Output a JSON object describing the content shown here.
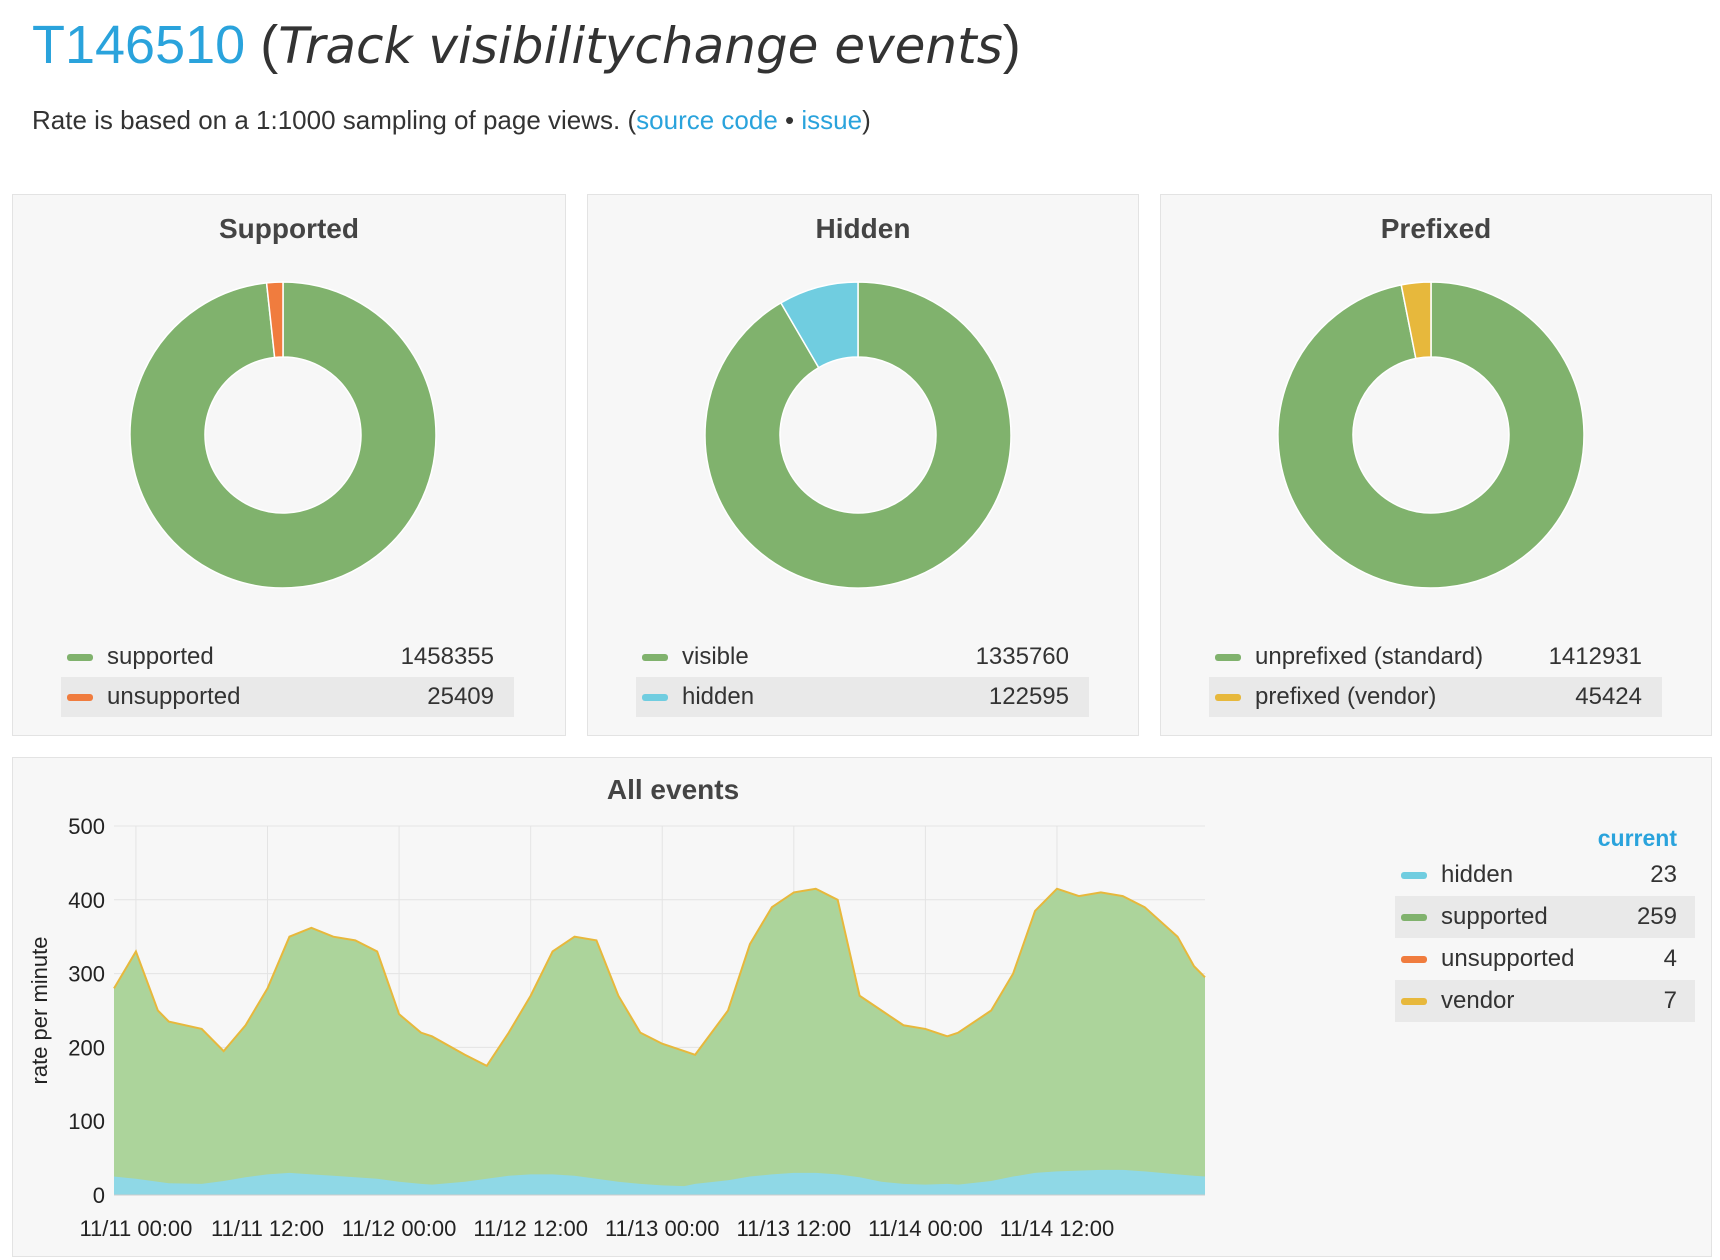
{
  "header": {
    "task_id": "T146510",
    "task_name": "Track visibilitychange events",
    "paren_open": "(",
    "paren_close": ")",
    "subtitle_prefix": "Rate is based on a 1:1000 sampling of page views. (",
    "source_code_label": "source code",
    "separator": " • ",
    "issue_label": "issue",
    "subtitle_suffix": ")"
  },
  "colors": {
    "green": "#80b26d",
    "orange": "#f07c3e",
    "cyan": "#70cde0",
    "yellow": "#e7b83c",
    "link": "#2aa3dc",
    "green_area": "#acd49b",
    "cyan_area": "#8fd8e6"
  },
  "donuts": [
    {
      "title": "Supported",
      "items": [
        {
          "label": "supported",
          "value": 1458355,
          "color": "#80b26d"
        },
        {
          "label": "unsupported",
          "value": 25409,
          "color": "#f07c3e"
        }
      ]
    },
    {
      "title": "Hidden",
      "items": [
        {
          "label": "visible",
          "value": 1335760,
          "color": "#80b26d"
        },
        {
          "label": "hidden",
          "value": 122595,
          "color": "#70cde0"
        }
      ]
    },
    {
      "title": "Prefixed",
      "items": [
        {
          "label": "unprefixed (standard)",
          "value": 1412931,
          "color": "#80b26d"
        },
        {
          "label": "prefixed (vendor)",
          "value": 45424,
          "color": "#e7b83c"
        }
      ]
    }
  ],
  "all_events": {
    "title": "All events",
    "current_header": "current",
    "legend": [
      {
        "label": "hidden",
        "value": 23,
        "color": "#70cde0"
      },
      {
        "label": "supported",
        "value": 259,
        "color": "#80b26d"
      },
      {
        "label": "unsupported",
        "value": 4,
        "color": "#f07c3e"
      },
      {
        "label": "vendor",
        "value": 7,
        "color": "#e7b83c"
      }
    ]
  },
  "chart_data": [
    {
      "type": "pie",
      "title": "Supported",
      "categories": [
        "supported",
        "unsupported"
      ],
      "values": [
        1458355,
        25409
      ]
    },
    {
      "type": "pie",
      "title": "Hidden",
      "categories": [
        "visible",
        "hidden"
      ],
      "values": [
        1335760,
        122595
      ]
    },
    {
      "type": "pie",
      "title": "Prefixed",
      "categories": [
        "unprefixed (standard)",
        "prefixed (vendor)"
      ],
      "values": [
        1412931,
        45424
      ]
    },
    {
      "type": "area",
      "title": "All events",
      "xlabel": "",
      "ylabel": "rate per minute",
      "ylim": [
        0,
        500
      ],
      "yticks": [
        0,
        100,
        200,
        300,
        400,
        500
      ],
      "xticks": [
        "11/11 00:00",
        "11/11 12:00",
        "11/12 00:00",
        "11/12 12:00",
        "11/13 00:00",
        "11/13 12:00",
        "11/14 00:00",
        "11/14 12:00"
      ],
      "x_hours": [
        -2,
        0,
        2,
        3,
        6,
        8,
        10,
        12,
        14,
        16,
        18,
        20,
        22,
        24,
        26,
        27,
        30,
        32,
        34,
        36,
        38,
        40,
        42,
        44,
        46,
        48,
        50,
        51,
        54,
        56,
        58,
        60,
        62,
        64,
        66,
        68,
        70,
        72,
        74,
        75,
        78,
        80,
        82,
        84,
        86,
        88,
        90,
        92,
        95,
        96.5,
        97.5
      ],
      "grid": true,
      "series": [
        {
          "name": "hidden",
          "values": [
            25,
            22,
            18,
            16,
            15,
            19,
            24,
            28,
            30,
            28,
            26,
            24,
            22,
            18,
            15,
            14,
            18,
            22,
            26,
            28,
            28,
            26,
            22,
            18,
            15,
            13,
            12,
            15,
            20,
            25,
            28,
            30,
            30,
            28,
            24,
            18,
            15,
            14,
            15,
            14,
            19,
            25,
            30,
            32,
            33,
            34,
            34,
            32,
            28,
            26,
            25
          ]
        },
        {
          "name": "supported",
          "values": [
            280,
            330,
            250,
            235,
            225,
            195,
            230,
            280,
            350,
            362,
            350,
            345,
            330,
            245,
            220,
            215,
            190,
            175,
            220,
            270,
            330,
            350,
            345,
            270,
            220,
            205,
            195,
            190,
            250,
            340,
            390,
            410,
            415,
            400,
            270,
            250,
            230,
            225,
            215,
            220,
            250,
            300,
            385,
            415,
            405,
            410,
            405,
            390,
            350,
            310,
            295
          ]
        }
      ]
    }
  ]
}
